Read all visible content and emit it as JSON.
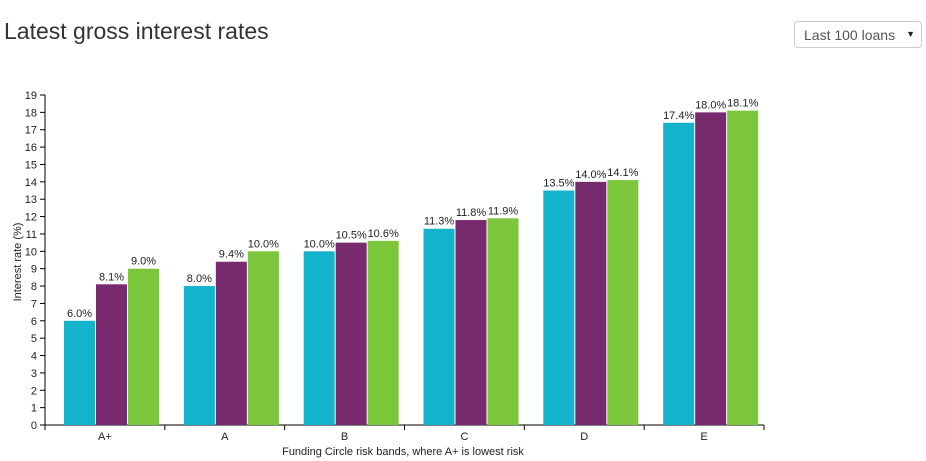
{
  "header": {
    "title": "Latest gross interest rates",
    "period_select": {
      "selected": "Last 100 loans"
    }
  },
  "colors": {
    "series1": "#12b3cb",
    "series2": "#782a6f",
    "series3": "#7bc63a",
    "axis": "#000000"
  },
  "icons": {
    "select_caret": "caret-down-icon"
  },
  "chart_data": {
    "type": "bar",
    "title": "",
    "xlabel": "Funding Circle risk bands, where A+ is lowest risk",
    "ylabel": "Interest rate (%)",
    "ylim": [
      0,
      19
    ],
    "yticks": [
      0,
      1,
      2,
      3,
      4,
      5,
      6,
      7,
      8,
      9,
      10,
      11,
      12,
      13,
      14,
      15,
      16,
      17,
      18,
      19
    ],
    "grid": false,
    "categories": [
      "A+",
      "A",
      "B",
      "C",
      "D",
      "E"
    ],
    "series": [
      {
        "values": [
          6.0,
          8.0,
          10.0,
          11.3,
          13.5,
          17.4
        ],
        "labels": [
          "6.0%",
          "8.0%",
          "10.0%",
          "11.3%",
          "13.5%",
          "17.4%"
        ]
      },
      {
        "values": [
          8.1,
          9.4,
          10.5,
          11.8,
          14.0,
          18.0
        ],
        "labels": [
          "8.1%",
          "9.4%",
          "10.5%",
          "11.8%",
          "14.0%",
          "18.0%"
        ]
      },
      {
        "values": [
          9.0,
          10.0,
          10.6,
          11.9,
          14.1,
          18.1
        ],
        "labels": [
          "9.0%",
          "10.0%",
          "10.6%",
          "11.9%",
          "14.1%",
          "18.1%"
        ]
      }
    ]
  }
}
